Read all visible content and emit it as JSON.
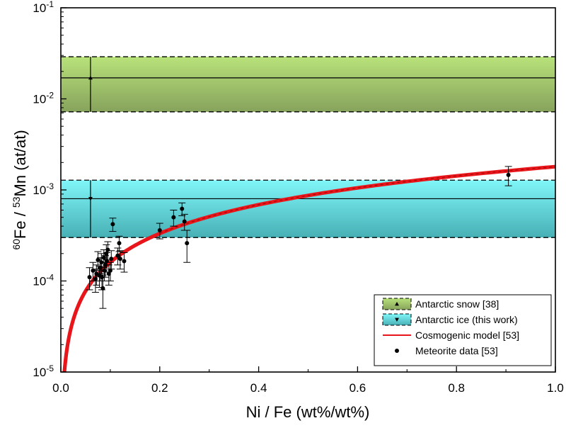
{
  "chart_data": {
    "type": "scatter",
    "xlabel": "Ni / Fe (wt%/wt%)",
    "ylabel": {
      "sup1": "60",
      "part1": "Fe / ",
      "sup2": "53",
      "part2": "Mn (at/at)"
    },
    "xlim": [
      0,
      1.0
    ],
    "ylim": [
      1e-05,
      0.1
    ],
    "yscale": "log",
    "grid": false,
    "legend_position": "bottom-right",
    "x_ticks": [
      "0.0",
      "0.2",
      "0.4",
      "0.6",
      "0.8",
      "1.0"
    ],
    "x_tick_values": [
      0,
      0.2,
      0.4,
      0.6,
      0.8,
      1.0
    ],
    "y_ticks": [
      {
        "value": 1e-05,
        "base": "10",
        "exp": "-5"
      },
      {
        "value": 0.0001,
        "base": "10",
        "exp": "-4"
      },
      {
        "value": 0.001,
        "base": "10",
        "exp": "-3"
      },
      {
        "value": 0.01,
        "base": "10",
        "exp": "-2"
      },
      {
        "value": 0.1,
        "base": "10",
        "exp": "-1"
      }
    ],
    "bands": [
      {
        "name": "Antarctic snow [38]",
        "center": 0.017,
        "low": 0.0072,
        "high": 0.029,
        "marker": "up-triangle",
        "marker_x": 0.06,
        "marker_y": 0.017,
        "color_top": "#b8e27a",
        "color_bottom": "#87a35c"
      },
      {
        "name": "Antarctic ice (this work)",
        "center": 0.0008,
        "low": 0.0003,
        "high": 0.00128,
        "marker": "down-triangle",
        "marker_x": 0.06,
        "marker_y": 0.0008,
        "color_top": "#80f6f9",
        "color_bottom": "#47b0b5"
      }
    ],
    "model": {
      "name": "Cosmogenic model [53]",
      "formula": "y = 0.0018 * x^1.05",
      "coef": 0.0018,
      "exponent": 1.05,
      "color": "#e8161a",
      "dash_color": "#8a0000"
    },
    "series": [
      {
        "name": "Meteorite data [53]",
        "points": [
          {
            "x": 0.058,
            "y": 0.00011,
            "err": 3e-05
          },
          {
            "x": 0.065,
            "y": 0.00013,
            "err": 3e-05
          },
          {
            "x": 0.07,
            "y": 0.000105,
            "err": 3e-05
          },
          {
            "x": 0.072,
            "y": 0.00012,
            "err": 3e-05
          },
          {
            "x": 0.075,
            "y": 0.00017,
            "err": 4e-05
          },
          {
            "x": 0.078,
            "y": 0.000115,
            "err": 3e-05
          },
          {
            "x": 0.08,
            "y": 0.00014,
            "err": 4e-05
          },
          {
            "x": 0.082,
            "y": 0.00016,
            "err": 4e-05
          },
          {
            "x": 0.083,
            "y": 0.00011,
            "err": 3e-05
          },
          {
            "x": 0.085,
            "y": 8.3e-05,
            "err": 3.3e-05
          },
          {
            "x": 0.087,
            "y": 0.00018,
            "err": 4e-05
          },
          {
            "x": 0.088,
            "y": 0.00013,
            "err": 3e-05
          },
          {
            "x": 0.09,
            "y": 0.00015,
            "err": 4e-05
          },
          {
            "x": 0.092,
            "y": 0.0002,
            "err": 5e-05
          },
          {
            "x": 0.093,
            "y": 0.000165,
            "err": 4e-05
          },
          {
            "x": 0.095,
            "y": 0.00022,
            "err": 5e-05
          },
          {
            "x": 0.097,
            "y": 0.00012,
            "err": 3e-05
          },
          {
            "x": 0.1,
            "y": 0.00013,
            "err": 3e-05
          },
          {
            "x": 0.102,
            "y": 0.000175,
            "err": 4e-05
          },
          {
            "x": 0.105,
            "y": 0.00042,
            "err": 7e-05
          },
          {
            "x": 0.115,
            "y": 0.00019,
            "err": 4e-05
          },
          {
            "x": 0.118,
            "y": 0.00026,
            "err": 5e-05
          },
          {
            "x": 0.12,
            "y": 0.000175,
            "err": 4e-05
          },
          {
            "x": 0.128,
            "y": 0.000165,
            "err": 4e-05
          },
          {
            "x": 0.2,
            "y": 0.00036,
            "err": 7e-05
          },
          {
            "x": 0.228,
            "y": 0.0005,
            "err": 0.0001
          },
          {
            "x": 0.245,
            "y": 0.00062,
            "err": 0.0001
          },
          {
            "x": 0.25,
            "y": 0.00045,
            "err": 9e-05
          },
          {
            "x": 0.255,
            "y": 0.00026,
            "err": 0.0001
          },
          {
            "x": 0.905,
            "y": 0.00146,
            "err": 0.00035
          }
        ]
      }
    ],
    "legend": [
      {
        "label": "Antarctic snow [38]",
        "kind": "band",
        "band": 0
      },
      {
        "label": "Antarctic ice (this work)",
        "kind": "band",
        "band": 1
      },
      {
        "label": "Cosmogenic model [53]",
        "kind": "line"
      },
      {
        "label": "Meteorite data [53]",
        "kind": "dot"
      }
    ]
  }
}
